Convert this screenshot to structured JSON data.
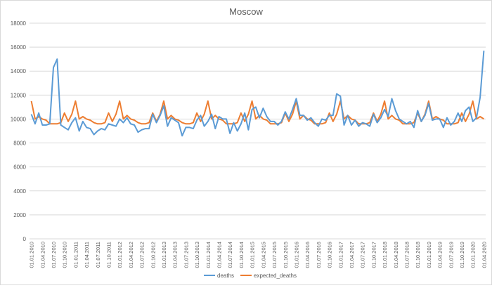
{
  "chart_data": {
    "type": "line",
    "title": "Moscow",
    "xlabel": "",
    "ylabel": "",
    "ylim": [
      0,
      18000
    ],
    "yticks": [
      0,
      2000,
      4000,
      6000,
      8000,
      10000,
      12000,
      14000,
      16000,
      18000
    ],
    "grid": true,
    "legend": "bottom",
    "xtick_labels": [
      "01.01.2010",
      "01.04.2010",
      "01.07.2010",
      "01.10.2010",
      "01.01.2011",
      "01.04.2011",
      "01.07.2011",
      "01.10.2011",
      "01.01.2012",
      "01.04.2012",
      "01.07.2012",
      "01.10.2012",
      "01.01.2013",
      "01.04.2013",
      "01.07.2013",
      "01.10.2013",
      "01.01.2014",
      "01.04.2014",
      "01.07.2014",
      "01.10.2014",
      "01.01.2015",
      "01.04.2015",
      "01.07.2015",
      "01.10.2015",
      "01.01.2016",
      "01.04.2016",
      "01.07.2016",
      "01.10.2016",
      "01.01.2017",
      "01.04.2017",
      "01.07.2017",
      "01.10.2017",
      "01.01.2018",
      "01.04.2018",
      "01.07.2018",
      "01.10.2018",
      "01.01.2019",
      "01.04.2019",
      "01.07.2019",
      "01.10.2019",
      "01.01.2020",
      "01.04.2020"
    ],
    "series": [
      {
        "name": "deaths",
        "color": "#5b9bd5",
        "values": [
          10400,
          9600,
          10500,
          9500,
          9500,
          9600,
          14300,
          15000,
          9500,
          9300,
          9100,
          9700,
          10100,
          9000,
          9800,
          9300,
          9200,
          8700,
          9000,
          9200,
          9100,
          9600,
          9500,
          9400,
          10000,
          9700,
          10100,
          9600,
          9500,
          8900,
          9100,
          9200,
          9200,
          10400,
          9700,
          10300,
          11100,
          9400,
          10100,
          9900,
          9700,
          8600,
          9300,
          9300,
          9200,
          9900,
          10300,
          9400,
          9800,
          10400,
          9200,
          10200,
          10000,
          10000,
          8800,
          9700,
          9000,
          9600,
          10500,
          9100,
          10800,
          11000,
          10100,
          10900,
          10200,
          9800,
          9800,
          9500,
          9800,
          10600,
          10000,
          10800,
          11700,
          10300,
          10300,
          9900,
          10100,
          9700,
          9400,
          10000,
          9900,
          10300,
          10300,
          12100,
          11900,
          9500,
          10300,
          9500,
          9900,
          9400,
          9700,
          9600,
          9400,
          10400,
          9700,
          10100,
          10800,
          10200,
          11700,
          10700,
          10000,
          9800,
          9600,
          9800,
          9300,
          10700,
          9800,
          10300,
          11300,
          9900,
          10000,
          10000,
          9300,
          10100,
          9500,
          9800,
          10500,
          9800,
          10700,
          11000,
          9800,
          10100,
          11800,
          15700
        ]
      },
      {
        "name": "expected_deaths",
        "color": "#ed7d31",
        "values": [
          11500,
          10000,
          10200,
          10000,
          9900,
          9600,
          9600,
          9600,
          9700,
          10500,
          9800,
          10400,
          11500,
          10000,
          10200,
          10000,
          9900,
          9700,
          9600,
          9600,
          9700,
          10500,
          9800,
          10400,
          11500,
          10000,
          10300,
          10000,
          9900,
          9700,
          9600,
          9600,
          9700,
          10500,
          9800,
          10400,
          11500,
          10000,
          10300,
          10000,
          9900,
          9700,
          9600,
          9600,
          9700,
          10500,
          9800,
          10400,
          11500,
          10000,
          10300,
          10000,
          9900,
          9600,
          9600,
          9600,
          9700,
          10500,
          9800,
          10400,
          11500,
          10000,
          10300,
          10000,
          9900,
          9600,
          9600,
          9600,
          9700,
          10500,
          9800,
          10400,
          11500,
          10000,
          10300,
          10000,
          9900,
          9600,
          9600,
          9600,
          9700,
          10500,
          9800,
          10400,
          11500,
          10000,
          10300,
          10000,
          9900,
          9600,
          9600,
          9600,
          9700,
          10500,
          9800,
          10400,
          11500,
          10000,
          10300,
          10000,
          9900,
          9600,
          9600,
          9600,
          9700,
          10500,
          9800,
          10400,
          11500,
          10000,
          10200,
          10000,
          9900,
          9600,
          9600,
          9600,
          9700,
          10500,
          9800,
          10400,
          11500,
          10000,
          10200,
          10000
        ]
      }
    ]
  }
}
